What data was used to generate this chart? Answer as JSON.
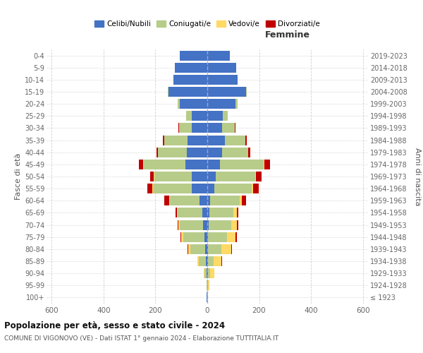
{
  "age_groups": [
    "100+",
    "95-99",
    "90-94",
    "85-89",
    "80-84",
    "75-79",
    "70-74",
    "65-69",
    "60-64",
    "55-59",
    "50-54",
    "45-49",
    "40-44",
    "35-39",
    "30-34",
    "25-29",
    "20-24",
    "15-19",
    "10-14",
    "5-9",
    "0-4"
  ],
  "birth_years": [
    "≤ 1923",
    "1924-1928",
    "1929-1933",
    "1934-1938",
    "1939-1943",
    "1944-1948",
    "1949-1953",
    "1954-1958",
    "1959-1963",
    "1964-1968",
    "1969-1973",
    "1974-1978",
    "1979-1983",
    "1984-1988",
    "1989-1993",
    "1994-1998",
    "1999-2003",
    "2004-2008",
    "2009-2013",
    "2014-2018",
    "2019-2023"
  ],
  "colors": {
    "celibi": "#4472c4",
    "coniugati": "#b8cc8a",
    "vedovi": "#ffd966",
    "divorziati": "#c00000"
  },
  "males": {
    "celibi": [
      2,
      1,
      2,
      5,
      8,
      12,
      15,
      18,
      30,
      60,
      60,
      85,
      80,
      75,
      60,
      60,
      105,
      150,
      130,
      125,
      105
    ],
    "coniugati": [
      1,
      2,
      8,
      28,
      58,
      80,
      90,
      95,
      115,
      150,
      145,
      160,
      110,
      90,
      50,
      22,
      8,
      3,
      0,
      0,
      0
    ],
    "vedovi": [
      0,
      0,
      3,
      6,
      8,
      8,
      6,
      4,
      2,
      2,
      2,
      2,
      0,
      0,
      0,
      0,
      0,
      0,
      0,
      0,
      0
    ],
    "divorziati": [
      0,
      0,
      0,
      0,
      2,
      4,
      4,
      5,
      18,
      18,
      12,
      18,
      6,
      5,
      2,
      0,
      0,
      0,
      0,
      0,
      0
    ]
  },
  "females": {
    "nubili": [
      1,
      1,
      2,
      3,
      4,
      4,
      5,
      8,
      12,
      28,
      32,
      50,
      58,
      68,
      58,
      60,
      108,
      150,
      118,
      112,
      88
    ],
    "coniugate": [
      0,
      2,
      8,
      22,
      50,
      72,
      88,
      92,
      112,
      142,
      152,
      168,
      100,
      80,
      48,
      18,
      8,
      3,
      0,
      0,
      0
    ],
    "vedove": [
      1,
      5,
      18,
      30,
      38,
      32,
      22,
      15,
      10,
      6,
      4,
      2,
      0,
      0,
      0,
      0,
      0,
      0,
      0,
      0,
      0
    ],
    "divorziate": [
      0,
      0,
      0,
      1,
      2,
      5,
      5,
      5,
      15,
      22,
      22,
      22,
      8,
      5,
      2,
      0,
      0,
      0,
      0,
      0,
      0
    ]
  },
  "title": "Popolazione per età, sesso e stato civile - 2024",
  "subtitle": "COMUNE DI VIGONOVO (VE) - Dati ISTAT 1° gennaio 2024 - Elaborazione TUTTITALIA.IT",
  "ylabel": "Fasce di età",
  "ylabel_right": "Anni di nascita",
  "xlabel_right": "Femmine",
  "xlim": 620,
  "background_color": "#ffffff",
  "grid_color": "#cccccc"
}
